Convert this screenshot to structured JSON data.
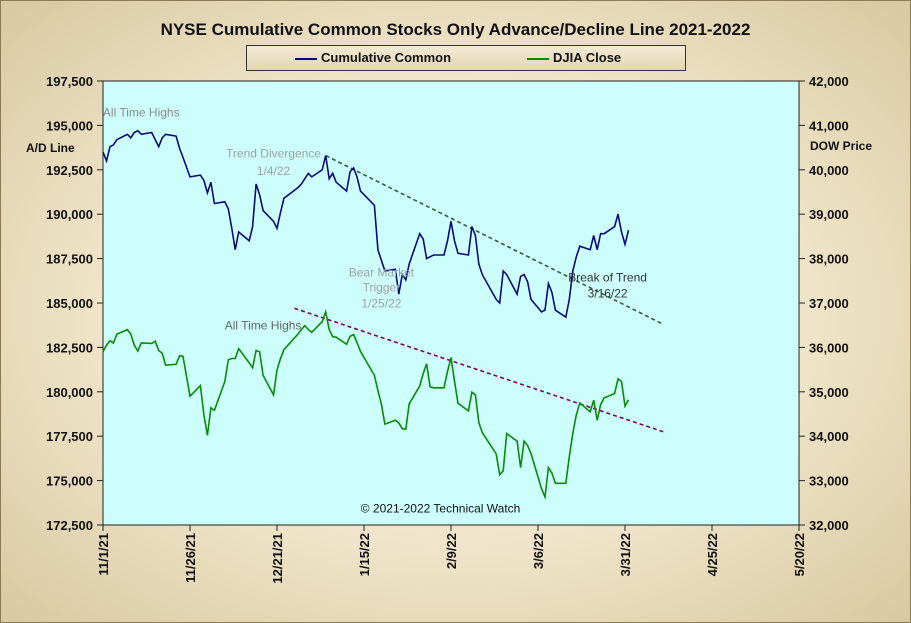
{
  "chart_data": {
    "type": "line",
    "title": "NYSE Cumulative  Common Stocks Only Advance/Decline Line 2021-2022",
    "ylabel_left": "A/D Line",
    "ylabel_right": "DOW Price",
    "ylim_left": [
      172500,
      197500
    ],
    "ylim_right": [
      32000,
      42000
    ],
    "yticks_left": [
      "197,500",
      "195,000",
      "192,500",
      "190,000",
      "187,500",
      "185,000",
      "182,500",
      "180,000",
      "177,500",
      "175,000",
      "172,500"
    ],
    "yticks_right": [
      "42,000",
      "41,000",
      "40,000",
      "39,000",
      "38,000",
      "37,000",
      "36,000",
      "35,000",
      "34,000",
      "33,000",
      "32,000"
    ],
    "x_ticks": [
      "11/1/21",
      "11/26/21",
      "12/21/21",
      "1/15/22",
      "2/9/22",
      "3/6/22",
      "3/31/22",
      "4/25/22",
      "5/20/22"
    ],
    "x_range": [
      "2021-11-01",
      "2022-05-20"
    ],
    "grid": false,
    "legend_position": "top-center",
    "colors": {
      "plot_bg": "#ccfffb",
      "ad_line": "#0a0a7a",
      "djia": "#0a8a0a",
      "trend_upper": "#3a5a3a",
      "trend_lower": "#800060",
      "annotation": "#8a8a8a"
    },
    "legend": [
      "Cumulative Common",
      "DJIA Close"
    ],
    "series": [
      {
        "name": "Cumulative Common",
        "axis": "left",
        "points": [
          [
            "2021-11-01",
            193500
          ],
          [
            "2021-11-02",
            193000
          ],
          [
            "2021-11-03",
            193800
          ],
          [
            "2021-11-04",
            193900
          ],
          [
            "2021-11-05",
            194200
          ],
          [
            "2021-11-08",
            194500
          ],
          [
            "2021-11-09",
            194300
          ],
          [
            "2021-11-10",
            194600
          ],
          [
            "2021-11-11",
            194700
          ],
          [
            "2021-11-12",
            194500
          ],
          [
            "2021-11-15",
            194600
          ],
          [
            "2021-11-16",
            194200
          ],
          [
            "2021-11-17",
            193800
          ],
          [
            "2021-11-18",
            194300
          ],
          [
            "2021-11-19",
            194500
          ],
          [
            "2021-11-22",
            194400
          ],
          [
            "2021-11-23",
            193700
          ],
          [
            "2021-11-24",
            193200
          ],
          [
            "2021-11-26",
            192100
          ],
          [
            "2021-11-29",
            192200
          ],
          [
            "2021-11-30",
            191900
          ],
          [
            "2021-12-01",
            191200
          ],
          [
            "2021-12-02",
            191800
          ],
          [
            "2021-12-03",
            190600
          ],
          [
            "2021-12-06",
            190700
          ],
          [
            "2021-12-07",
            190300
          ],
          [
            "2021-12-08",
            189200
          ],
          [
            "2021-12-09",
            188000
          ],
          [
            "2021-12-10",
            189000
          ],
          [
            "2021-12-13",
            188500
          ],
          [
            "2021-12-14",
            189300
          ],
          [
            "2021-12-15",
            191700
          ],
          [
            "2021-12-16",
            191100
          ],
          [
            "2021-12-17",
            190200
          ],
          [
            "2021-12-20",
            189600
          ],
          [
            "2021-12-21",
            189200
          ],
          [
            "2021-12-22",
            190100
          ],
          [
            "2021-12-23",
            190900
          ],
          [
            "2021-12-27",
            191500
          ],
          [
            "2021-12-28",
            191700
          ],
          [
            "2021-12-29",
            192000
          ],
          [
            "2021-12-30",
            192300
          ],
          [
            "2021-12-31",
            192100
          ],
          [
            "2022-01-03",
            192500
          ],
          [
            "2022-01-04",
            193300
          ],
          [
            "2022-01-05",
            192000
          ],
          [
            "2022-01-06",
            192300
          ],
          [
            "2022-01-07",
            191800
          ],
          [
            "2022-01-10",
            191300
          ],
          [
            "2022-01-11",
            192400
          ],
          [
            "2022-01-12",
            192600
          ],
          [
            "2022-01-13",
            192100
          ],
          [
            "2022-01-14",
            191300
          ],
          [
            "2022-01-18",
            190500
          ],
          [
            "2022-01-19",
            188000
          ],
          [
            "2022-01-20",
            187400
          ],
          [
            "2022-01-21",
            186800
          ],
          [
            "2022-01-24",
            186900
          ],
          [
            "2022-01-25",
            185500
          ],
          [
            "2022-01-26",
            186600
          ],
          [
            "2022-01-27",
            186300
          ],
          [
            "2022-01-28",
            187200
          ],
          [
            "2022-01-31",
            188900
          ],
          [
            "2022-02-01",
            188600
          ],
          [
            "2022-02-02",
            187500
          ],
          [
            "2022-02-03",
            187600
          ],
          [
            "2022-02-04",
            187700
          ],
          [
            "2022-02-07",
            187700
          ],
          [
            "2022-02-08",
            188500
          ],
          [
            "2022-02-09",
            189600
          ],
          [
            "2022-02-10",
            188500
          ],
          [
            "2022-02-11",
            187800
          ],
          [
            "2022-02-14",
            187700
          ],
          [
            "2022-02-15",
            189300
          ],
          [
            "2022-02-16",
            188800
          ],
          [
            "2022-02-17",
            187200
          ],
          [
            "2022-02-18",
            186600
          ],
          [
            "2022-02-22",
            185200
          ],
          [
            "2022-02-23",
            185000
          ],
          [
            "2022-02-24",
            186800
          ],
          [
            "2022-02-25",
            186600
          ],
          [
            "2022-02-28",
            185500
          ],
          [
            "2022-03-01",
            186500
          ],
          [
            "2022-03-02",
            186600
          ],
          [
            "2022-03-03",
            186200
          ],
          [
            "2022-03-04",
            185200
          ],
          [
            "2022-03-07",
            184500
          ],
          [
            "2022-03-08",
            184600
          ],
          [
            "2022-03-09",
            186100
          ],
          [
            "2022-03-10",
            185600
          ],
          [
            "2022-03-11",
            184600
          ],
          [
            "2022-03-14",
            184200
          ],
          [
            "2022-03-15",
            185200
          ],
          [
            "2022-03-16",
            186800
          ],
          [
            "2022-03-17",
            187600
          ],
          [
            "2022-03-18",
            188200
          ],
          [
            "2022-03-21",
            188000
          ],
          [
            "2022-03-22",
            188800
          ],
          [
            "2022-03-23",
            188000
          ],
          [
            "2022-03-24",
            188900
          ],
          [
            "2022-03-25",
            188900
          ],
          [
            "2022-03-28",
            189300
          ],
          [
            "2022-03-29",
            190000
          ],
          [
            "2022-03-30",
            189000
          ],
          [
            "2022-03-31",
            188300
          ],
          [
            "2022-04-01",
            189100
          ]
        ]
      },
      {
        "name": "DJIA Close",
        "axis": "right",
        "points": [
          [
            "2021-11-01",
            35900
          ],
          [
            "2021-11-02",
            36050
          ],
          [
            "2021-11-03",
            36150
          ],
          [
            "2021-11-04",
            36100
          ],
          [
            "2021-11-05",
            36300
          ],
          [
            "2021-11-08",
            36400
          ],
          [
            "2021-11-09",
            36300
          ],
          [
            "2021-11-10",
            36050
          ],
          [
            "2021-11-11",
            35920
          ],
          [
            "2021-11-12",
            36100
          ],
          [
            "2021-11-15",
            36090
          ],
          [
            "2021-11-16",
            36140
          ],
          [
            "2021-11-17",
            35930
          ],
          [
            "2021-11-18",
            35870
          ],
          [
            "2021-11-19",
            35600
          ],
          [
            "2021-11-22",
            35620
          ],
          [
            "2021-11-23",
            35810
          ],
          [
            "2021-11-24",
            35800
          ],
          [
            "2021-11-26",
            34900
          ],
          [
            "2021-11-29",
            35140
          ],
          [
            "2021-11-30",
            34480
          ],
          [
            "2021-12-01",
            34020
          ],
          [
            "2021-12-02",
            34640
          ],
          [
            "2021-12-03",
            34580
          ],
          [
            "2021-12-06",
            35230
          ],
          [
            "2021-12-07",
            35720
          ],
          [
            "2021-12-08",
            35750
          ],
          [
            "2021-12-09",
            35750
          ],
          [
            "2021-12-10",
            35970
          ],
          [
            "2021-12-13",
            35650
          ],
          [
            "2021-12-14",
            35540
          ],
          [
            "2021-12-15",
            35930
          ],
          [
            "2021-12-16",
            35900
          ],
          [
            "2021-12-17",
            35370
          ],
          [
            "2021-12-20",
            34930
          ],
          [
            "2021-12-21",
            35490
          ],
          [
            "2021-12-22",
            35750
          ],
          [
            "2021-12-23",
            35950
          ],
          [
            "2021-12-27",
            36300
          ],
          [
            "2021-12-28",
            36400
          ],
          [
            "2021-12-29",
            36490
          ],
          [
            "2021-12-30",
            36400
          ],
          [
            "2021-12-31",
            36340
          ],
          [
            "2022-01-03",
            36580
          ],
          [
            "2022-01-04",
            36800
          ],
          [
            "2022-01-05",
            36400
          ],
          [
            "2022-01-06",
            36240
          ],
          [
            "2022-01-07",
            36230
          ],
          [
            "2022-01-10",
            36070
          ],
          [
            "2022-01-11",
            36250
          ],
          [
            "2022-01-12",
            36290
          ],
          [
            "2022-01-13",
            36110
          ],
          [
            "2022-01-14",
            35910
          ],
          [
            "2022-01-18",
            35370
          ],
          [
            "2022-01-19",
            35030
          ],
          [
            "2022-01-20",
            34720
          ],
          [
            "2022-01-21",
            34270
          ],
          [
            "2022-01-24",
            34360
          ],
          [
            "2022-01-25",
            34300
          ],
          [
            "2022-01-26",
            34170
          ],
          [
            "2022-01-27",
            34160
          ],
          [
            "2022-01-28",
            34730
          ],
          [
            "2022-01-31",
            35130
          ],
          [
            "2022-02-01",
            35410
          ],
          [
            "2022-02-02",
            35630
          ],
          [
            "2022-02-03",
            35110
          ],
          [
            "2022-02-04",
            35090
          ],
          [
            "2022-02-07",
            35090
          ],
          [
            "2022-02-08",
            35460
          ],
          [
            "2022-02-09",
            35770
          ],
          [
            "2022-02-10",
            35240
          ],
          [
            "2022-02-11",
            34740
          ],
          [
            "2022-02-14",
            34570
          ],
          [
            "2022-02-15",
            34990
          ],
          [
            "2022-02-16",
            34930
          ],
          [
            "2022-02-17",
            34310
          ],
          [
            "2022-02-18",
            34080
          ],
          [
            "2022-02-22",
            33600
          ],
          [
            "2022-02-23",
            33130
          ],
          [
            "2022-02-24",
            33220
          ],
          [
            "2022-02-25",
            34060
          ],
          [
            "2022-02-28",
            33890
          ],
          [
            "2022-03-01",
            33290
          ],
          [
            "2022-03-02",
            33890
          ],
          [
            "2022-03-03",
            33790
          ],
          [
            "2022-03-04",
            33610
          ],
          [
            "2022-03-07",
            32820
          ],
          [
            "2022-03-08",
            32630
          ],
          [
            "2022-03-09",
            33290
          ],
          [
            "2022-03-10",
            33170
          ],
          [
            "2022-03-11",
            32940
          ],
          [
            "2022-03-14",
            32940
          ],
          [
            "2022-03-15",
            33540
          ],
          [
            "2022-03-16",
            34060
          ],
          [
            "2022-03-17",
            34480
          ],
          [
            "2022-03-18",
            34750
          ],
          [
            "2022-03-21",
            34550
          ],
          [
            "2022-03-22",
            34810
          ],
          [
            "2022-03-23",
            34360
          ],
          [
            "2022-03-24",
            34710
          ],
          [
            "2022-03-25",
            34860
          ],
          [
            "2022-03-28",
            34960
          ],
          [
            "2022-03-29",
            35290
          ],
          [
            "2022-03-30",
            35230
          ],
          [
            "2022-03-31",
            34680
          ],
          [
            "2022-04-01",
            34820
          ]
        ]
      }
    ],
    "trendlines": [
      {
        "name": "upper",
        "axis": "left",
        "from": [
          "2022-01-04",
          193300
        ],
        "to": [
          "2022-04-11",
          183800
        ]
      },
      {
        "name": "lower",
        "axis": "right",
        "from": [
          "2021-12-26",
          36880
        ],
        "to": [
          "2022-04-11",
          34100
        ]
      }
    ],
    "annotations": [
      {
        "text": "All Time Highs",
        "x": "2021-11-12",
        "y": 195500,
        "axis": "left",
        "color": "#8a8a8a"
      },
      {
        "text": "Trend  Divergence",
        "x": "2021-12-20",
        "y": 193200,
        "axis": "left",
        "color": "#a0a0a0"
      },
      {
        "text": "1/4/22",
        "x": "2021-12-20",
        "y": 192200,
        "axis": "left",
        "color": "#a0a0a0"
      },
      {
        "text": "Bear Market",
        "x": "2022-01-20",
        "y": 186500,
        "axis": "left",
        "color": "#a0a0a0"
      },
      {
        "text": "Trigger",
        "x": "2022-01-20",
        "y": 185650,
        "axis": "left",
        "color": "#a0a0a0"
      },
      {
        "text": "1/25/22",
        "x": "2022-01-20",
        "y": 184750,
        "axis": "left",
        "color": "#a0a0a0"
      },
      {
        "text": "All Time Highs",
        "x": "2021-12-17",
        "y": 183500,
        "axis": "left",
        "color": "#666666"
      },
      {
        "text": "Break of Trend",
        "x": "2022-03-26",
        "y": 186200,
        "axis": "left",
        "color": "#333333"
      },
      {
        "text": "3/16/22",
        "x": "2022-03-26",
        "y": 185300,
        "axis": "left",
        "color": "#333333"
      },
      {
        "text": "© 2021-2022  Technical Watch",
        "x": "2022-02-06",
        "y": 173200,
        "axis": "left",
        "color": "#111111"
      }
    ]
  }
}
